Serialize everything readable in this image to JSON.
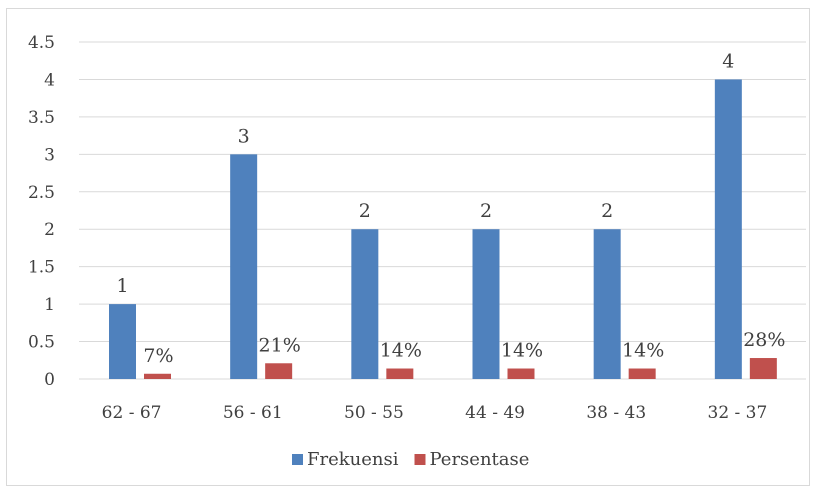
{
  "chart_data": {
    "type": "bar",
    "categories": [
      "62 - 67",
      "56 - 61",
      "50 - 55",
      "44 - 49",
      "38 - 43",
      "32 - 37"
    ],
    "series": [
      {
        "name": "Frekuensi",
        "color": "#4f81bd",
        "values": [
          1,
          3,
          2,
          2,
          2,
          4
        ],
        "data_labels": [
          "1",
          "3",
          "2",
          "2",
          "2",
          "4"
        ]
      },
      {
        "name": "Persentase",
        "color": "#c0504d",
        "values": [
          0.07,
          0.21,
          0.14,
          0.14,
          0.14,
          0.28
        ],
        "data_labels": [
          "7%",
          "21%",
          "14%",
          "14%",
          "14%",
          "28%"
        ]
      }
    ],
    "ylim": [
      0,
      4.5
    ],
    "yticks": [
      "0",
      "0.5",
      "1",
      "1.5",
      "2",
      "2.5",
      "3",
      "3.5",
      "4",
      "4.5"
    ],
    "grid": true,
    "legend_position": "bottom",
    "title": "",
    "xlabel": "",
    "ylabel": ""
  }
}
